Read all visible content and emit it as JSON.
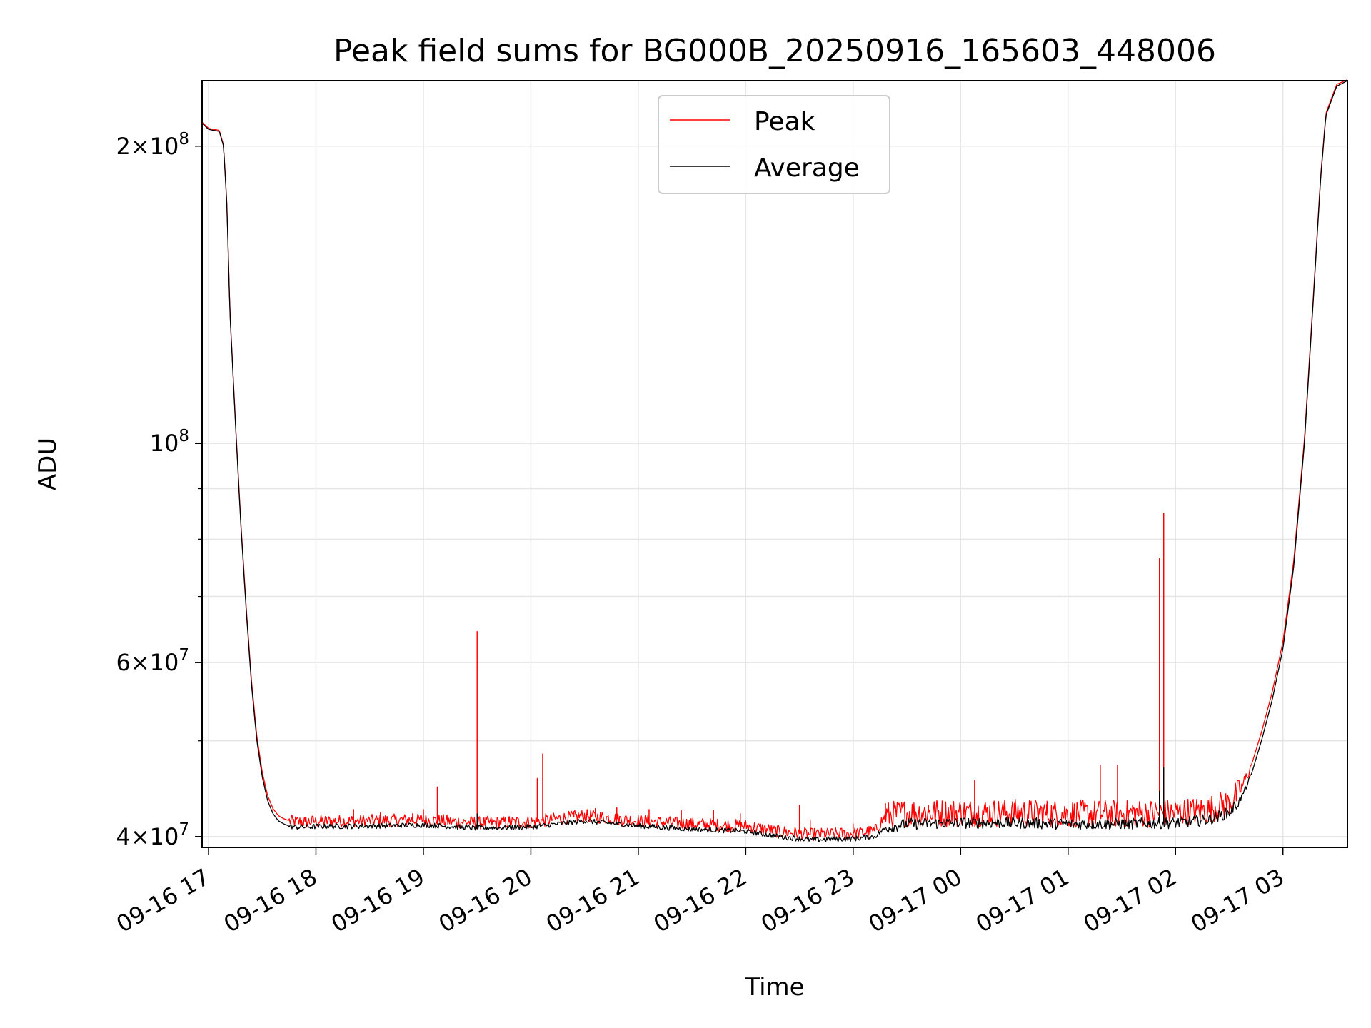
{
  "chart_data": {
    "type": "line",
    "title": "Peak field sums for BG000B_20250916_165603_448006",
    "xlabel": "Time",
    "ylabel": "ADU",
    "y_scale": "log",
    "ylim": [
      39000000,
      233000000
    ],
    "xlim_hours": [
      16.94,
      27.6
    ],
    "x_unit": "hours since 09-16 00:00",
    "grid": true,
    "legend": {
      "placement": "top-center",
      "entries": [
        {
          "name": "Peak",
          "color": "#ff0000"
        },
        {
          "name": "Average",
          "color": "#000000"
        }
      ]
    },
    "x_ticks": [
      {
        "value": 17,
        "label": "09-16 17"
      },
      {
        "value": 18,
        "label": "09-16 18"
      },
      {
        "value": 19,
        "label": "09-16 19"
      },
      {
        "value": 20,
        "label": "09-16 20"
      },
      {
        "value": 21,
        "label": "09-16 21"
      },
      {
        "value": 22,
        "label": "09-16 22"
      },
      {
        "value": 23,
        "label": "09-16 23"
      },
      {
        "value": 24,
        "label": "09-17 00"
      },
      {
        "value": 25,
        "label": "09-17 01"
      },
      {
        "value": 26,
        "label": "09-17 02"
      },
      {
        "value": 27,
        "label": "09-17 03"
      }
    ],
    "y_ticks": [
      {
        "value": 40000000,
        "base": "4",
        "exp": "7",
        "times": true
      },
      {
        "value": 60000000,
        "base": "6",
        "exp": "7",
        "times": true
      },
      {
        "value": 100000000,
        "base": "10",
        "exp": "8",
        "times": false
      },
      {
        "value": 200000000,
        "base": "2",
        "exp": "8",
        "times": true
      }
    ],
    "y_minor_ticks": [
      50000000,
      70000000,
      80000000,
      90000000
    ],
    "series": [
      {
        "name": "Average",
        "color": "#000000",
        "x": [
          16.94,
          17.0,
          17.1,
          17.14,
          17.17,
          17.2,
          17.25,
          17.3,
          17.35,
          17.4,
          17.45,
          17.5,
          17.55,
          17.6,
          17.65,
          17.7,
          17.75,
          17.8,
          17.9,
          18.0,
          18.5,
          19.0,
          19.5,
          20.0,
          20.5,
          21.0,
          21.5,
          22.0,
          22.3,
          22.6,
          23.0,
          23.2,
          23.3,
          23.5,
          24.0,
          24.5,
          25.0,
          25.5,
          26.0,
          26.3,
          26.5,
          26.6,
          26.7,
          26.8,
          26.9,
          27.0,
          27.1,
          27.2,
          27.3,
          27.35,
          27.4,
          27.5,
          27.6
        ],
        "y": [
          211000000,
          208000000,
          207000000,
          200000000,
          175000000,
          135000000,
          105000000,
          83000000,
          68000000,
          57000000,
          50000000,
          46000000,
          43500000,
          42200000,
          41500000,
          41200000,
          41000000,
          40900000,
          40900000,
          40950000,
          41000000,
          41100000,
          40800000,
          40900000,
          41500000,
          41000000,
          40700000,
          40500000,
          40000000,
          39700000,
          39800000,
          40000000,
          40800000,
          41200000,
          41300000,
          41300000,
          41200000,
          41200000,
          41300000,
          41600000,
          42300000,
          43500000,
          46000000,
          50000000,
          55000000,
          62000000,
          75000000,
          100000000,
          150000000,
          185000000,
          215000000,
          230000000,
          233000000
        ]
      },
      {
        "name": "Peak",
        "color": "#ff0000",
        "x": [
          16.94,
          17.0,
          17.1,
          17.14,
          17.17,
          17.2,
          17.25,
          17.3,
          17.35,
          17.4,
          17.45,
          17.5,
          17.55,
          17.6,
          17.65,
          17.7,
          17.75,
          17.8,
          17.9,
          18.0,
          18.5,
          19.0,
          19.5,
          20.0,
          20.5,
          21.0,
          21.5,
          22.0,
          22.3,
          22.6,
          23.0,
          23.2,
          23.3,
          23.5,
          24.0,
          24.5,
          25.0,
          25.5,
          26.0,
          26.3,
          26.5,
          26.6,
          26.7,
          26.8,
          26.9,
          27.0,
          27.1,
          27.2,
          27.3,
          27.35,
          27.4,
          27.5,
          27.6
        ],
        "y": [
          211500000,
          208500000,
          207500000,
          200500000,
          175500000,
          135500000,
          105500000,
          83500000,
          68500000,
          57500000,
          50500000,
          46500000,
          44000000,
          42700000,
          42000000,
          41700000,
          41500000,
          41400000,
          41400000,
          41450000,
          41500000,
          41600000,
          41300000,
          41400000,
          42000000,
          41500000,
          41200000,
          41000000,
          40500000,
          40200000,
          40300000,
          40500000,
          42000000,
          42300000,
          42300000,
          42300000,
          42200000,
          42200000,
          42300000,
          42600000,
          43300000,
          44500000,
          47000000,
          51000000,
          56000000,
          63000000,
          76000000,
          101000000,
          151000000,
          186000000,
          216000000,
          231000000,
          233500000
        ]
      }
    ],
    "peak_spikes": [
      {
        "x": 17.6,
        "y": 42500000
      },
      {
        "x": 17.9,
        "y": 41800000
      },
      {
        "x": 18.35,
        "y": 42600000
      },
      {
        "x": 18.6,
        "y": 42300000
      },
      {
        "x": 18.9,
        "y": 42200000
      },
      {
        "x": 19.0,
        "y": 42600000
      },
      {
        "x": 19.13,
        "y": 44900000
      },
      {
        "x": 19.5,
        "y": 64500000
      },
      {
        "x": 19.8,
        "y": 41900000
      },
      {
        "x": 20.06,
        "y": 45800000
      },
      {
        "x": 20.11,
        "y": 48500000
      },
      {
        "x": 20.4,
        "y": 42400000
      },
      {
        "x": 20.6,
        "y": 42700000
      },
      {
        "x": 20.8,
        "y": 42800000
      },
      {
        "x": 21.1,
        "y": 42600000
      },
      {
        "x": 21.4,
        "y": 42500000
      },
      {
        "x": 21.7,
        "y": 42500000
      },
      {
        "x": 21.95,
        "y": 42200000
      },
      {
        "x": 22.5,
        "y": 43000000
      },
      {
        "x": 22.6,
        "y": 41500000
      },
      {
        "x": 23.0,
        "y": 41200000
      },
      {
        "x": 23.3,
        "y": 43200000
      },
      {
        "x": 23.7,
        "y": 43000000
      },
      {
        "x": 24.13,
        "y": 45600000
      },
      {
        "x": 24.5,
        "y": 43200000
      },
      {
        "x": 24.8,
        "y": 43100000
      },
      {
        "x": 25.3,
        "y": 47200000
      },
      {
        "x": 25.46,
        "y": 47200000
      },
      {
        "x": 25.6,
        "y": 43000000
      },
      {
        "x": 25.85,
        "y": 76500000
      },
      {
        "x": 25.89,
        "y": 85000000
      },
      {
        "x": 26.2,
        "y": 43100000
      },
      {
        "x": 26.5,
        "y": 43600000
      }
    ],
    "average_spikes": [
      {
        "x": 19.5,
        "y": 42200000
      },
      {
        "x": 25.85,
        "y": 44500000
      },
      {
        "x": 25.89,
        "y": 47000000
      }
    ]
  }
}
